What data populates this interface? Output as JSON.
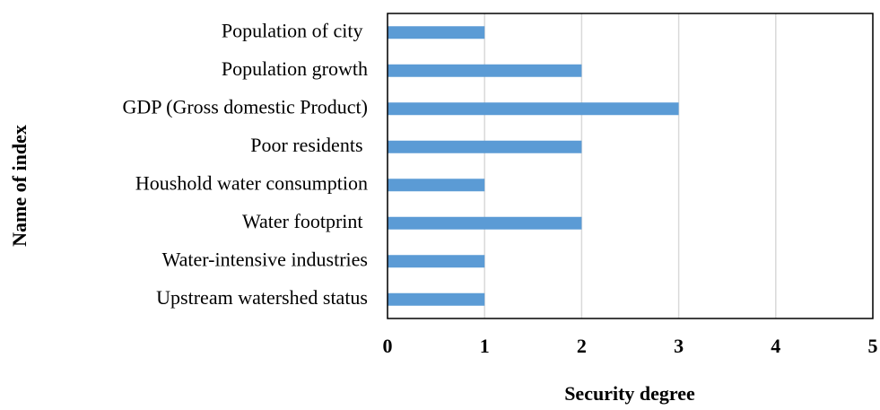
{
  "chart_data": {
    "type": "barh",
    "x_label": "Security degree",
    "y_label": "Name of index",
    "categories": [
      "Population of city ",
      "Population growth",
      "GDP (Gross domestic Product)",
      "Poor residents ",
      "Houshold water consumption",
      "Water footprint ",
      "Water-intensive industries",
      "Upstream watershed status"
    ],
    "values": [
      1,
      2,
      3,
      2,
      1,
      2,
      1,
      1
    ],
    "color": "#5b9bd5",
    "xlim": [
      0,
      5
    ],
    "xticks": [
      0,
      1,
      2,
      3,
      4,
      5
    ],
    "grid": true
  }
}
